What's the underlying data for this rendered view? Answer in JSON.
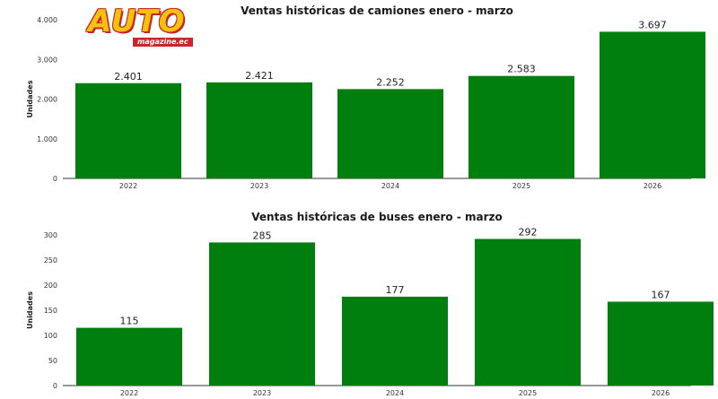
{
  "logo": {
    "main": "AUTO",
    "sub": "magazine.ec"
  },
  "colors": {
    "bar": "#007f0e",
    "axis": "#333333"
  },
  "chart_data": [
    {
      "type": "bar",
      "title": "Ventas históricas de camiones enero - marzo",
      "ylabel": "Unidades",
      "categories": [
        "2022",
        "2023",
        "2024",
        "2025",
        "2026"
      ],
      "values": [
        2401,
        2421,
        2252,
        2583,
        3697
      ],
      "value_labels": [
        "2.401",
        "2.421",
        "2.252",
        "2.583",
        "3.697"
      ],
      "ylim": [
        0,
        4000
      ],
      "yticks": [
        0,
        1000,
        2000,
        3000,
        4000
      ],
      "ytick_labels": [
        "0",
        "1.000",
        "2.000",
        "3.000",
        "4.000"
      ],
      "grid": false
    },
    {
      "type": "bar",
      "title": "Ventas históricas de buses enero - marzo",
      "ylabel": "Unidades",
      "categories": [
        "2022",
        "2023",
        "2024",
        "2025",
        "2026"
      ],
      "values": [
        115,
        285,
        177,
        292,
        167
      ],
      "value_labels": [
        "115",
        "285",
        "177",
        "292",
        "167"
      ],
      "ylim": [
        0,
        300
      ],
      "yticks": [
        0,
        50,
        100,
        150,
        200,
        250,
        300
      ],
      "ytick_labels": [
        "0",
        "50",
        "100",
        "150",
        "200",
        "250",
        "300"
      ],
      "grid": false
    }
  ]
}
